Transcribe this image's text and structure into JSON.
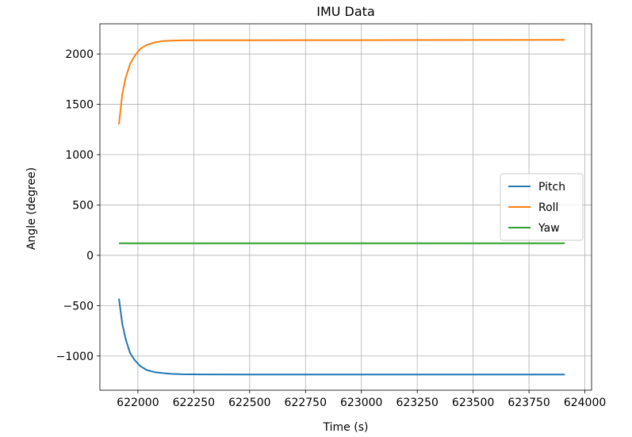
{
  "chart_data": {
    "type": "line",
    "title": "IMU Data",
    "xlabel": "Time (s)",
    "ylabel": "Angle (degree)",
    "xlim": [
      621830,
      624030
    ],
    "ylim": [
      -1340,
      2300
    ],
    "xticks": [
      622000,
      622250,
      622500,
      622750,
      623000,
      623250,
      623500,
      623750,
      624000
    ],
    "yticks": [
      -1000,
      -500,
      0,
      500,
      1000,
      1500,
      2000
    ],
    "ytick_labels": [
      "−1000",
      "−500",
      "0",
      "500",
      "1000",
      "1500",
      "2000"
    ],
    "grid": true,
    "legend_position": "center-right",
    "series": [
      {
        "name": "Pitch",
        "color": "#1f77b4",
        "x": [
          621915,
          621930,
          621945,
          621965,
          621985,
          622010,
          622040,
          622075,
          622110,
          622150,
          622200,
          622300,
          622500,
          623000,
          623500,
          623910
        ],
        "y": [
          -430,
          -680,
          -830,
          -970,
          -1040,
          -1100,
          -1140,
          -1160,
          -1170,
          -1178,
          -1182,
          -1183,
          -1184,
          -1184,
          -1184,
          -1184
        ]
      },
      {
        "name": "Roll",
        "color": "#ff7f0e",
        "x": [
          621915,
          621930,
          621945,
          621965,
          621985,
          622010,
          622040,
          622075,
          622110,
          622150,
          622200,
          622300,
          622500,
          623000,
          623500,
          623910
        ],
        "y": [
          1300,
          1600,
          1760,
          1900,
          1980,
          2050,
          2090,
          2115,
          2128,
          2133,
          2135,
          2136,
          2137,
          2138,
          2139,
          2140
        ]
      },
      {
        "name": "Yaw",
        "color": "#2ca02c",
        "x": [
          621915,
          622200,
          622500,
          623000,
          623500,
          623910
        ],
        "y": [
          120,
          120,
          120,
          120,
          120,
          120
        ]
      }
    ]
  }
}
